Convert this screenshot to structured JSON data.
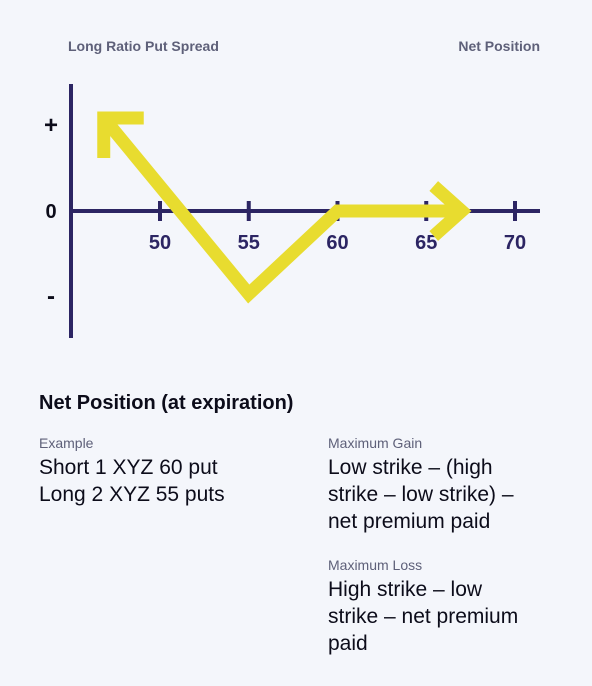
{
  "chart_data": {
    "type": "line",
    "title": "Long Ratio Put Spread",
    "subtitle": "Net Position",
    "x_ticks": [
      50,
      55,
      60,
      65,
      70
    ],
    "y_ticks": [
      "+",
      "0",
      "-"
    ],
    "series": [
      {
        "x": [
          47,
          55,
          60,
          67
        ],
        "y": [
          1.0,
          -1.0,
          0,
          0
        ]
      }
    ],
    "xlim": [
      45,
      70
    ],
    "line_color": "#e8dc2f",
    "axis_color": "#2c2563"
  },
  "net_position": {
    "heading": "Net Position (at expiration)",
    "example": {
      "label": "Example",
      "lines": [
        "Short 1 XYZ 60 put",
        "Long 2 XYZ 55 puts"
      ]
    },
    "max_gain": {
      "label": "Maximum Gain",
      "lines": [
        "Low strike – (high",
        "strike – low strike) –",
        "net premium paid"
      ]
    },
    "max_loss": {
      "label": "Maximum Loss",
      "lines": [
        "High strike – low",
        "strike – net premium",
        "paid"
      ]
    }
  }
}
